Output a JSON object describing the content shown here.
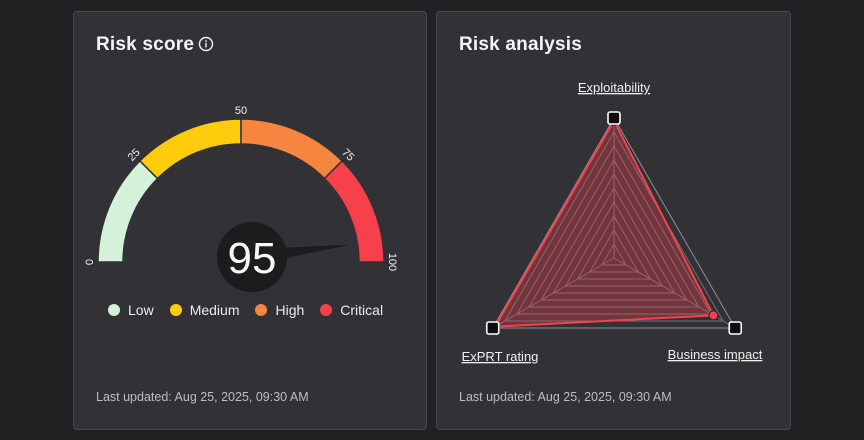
{
  "risk_score": {
    "title": "Risk score",
    "score": "95",
    "score_value": 95,
    "scale_labels": [
      "0",
      "25",
      "50",
      "75",
      "100"
    ],
    "segments": [
      {
        "name": "Low",
        "from": 0,
        "to": 25,
        "color": "#d4f2d8"
      },
      {
        "name": "Medium",
        "from": 25,
        "to": 50,
        "color": "#fdcc0d"
      },
      {
        "name": "High",
        "from": 50,
        "to": 75,
        "color": "#f5853f"
      },
      {
        "name": "Critical",
        "from": 75,
        "to": 100,
        "color": "#f6404b"
      }
    ],
    "legend": [
      {
        "label": "Low",
        "color": "#d4f2d8"
      },
      {
        "label": "Medium",
        "color": "#fdcc0d"
      },
      {
        "label": "High",
        "color": "#f5853f"
      },
      {
        "label": "Critical",
        "color": "#f6404b"
      }
    ],
    "last_updated": "Last updated: Aug 25, 2025, 09:30 AM"
  },
  "risk_analysis": {
    "title": "Risk analysis",
    "axes": [
      {
        "label": "Exploitability",
        "value": 0.98
      },
      {
        "label": "Business impact",
        "value": 0.82
      },
      {
        "label": "ExPRT rating",
        "value": 0.98
      }
    ],
    "series_color": "#f6404b",
    "last_updated": "Last updated: Aug 25, 2025, 09:30 AM"
  }
}
